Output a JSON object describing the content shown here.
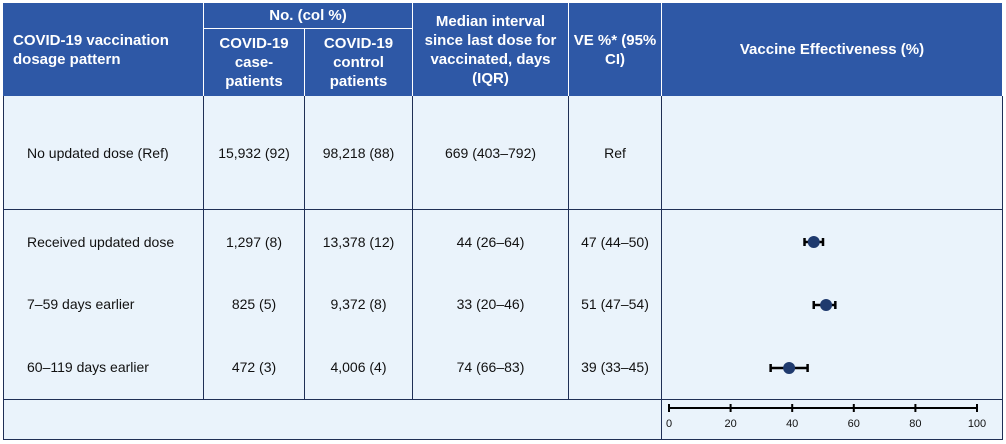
{
  "header": {
    "pattern": "COVID-19 vaccination dosage pattern",
    "no_col": "No. (col %)",
    "case_patients": "COVID-19 case-patients",
    "control_patients": "COVID-19 control patients",
    "median_interval": "Median interval since last dose for vaccinated, days (IQR)",
    "ve_ci": "VE %* (95% CI)",
    "ve_plot": "Vaccine Effectiveness (%)"
  },
  "rows": [
    {
      "pattern": "No updated dose (Ref)",
      "cases": "15,932 (92)",
      "controls": "98,218 (88)",
      "interval": "669 (403–792)",
      "ve": "Ref"
    },
    {
      "pattern": "Received updated dose",
      "cases": "1,297 (8)",
      "controls": "13,378 (12)",
      "interval": "44 (26–64)",
      "ve": "47 (44–50)"
    },
    {
      "pattern": "7–59 days earlier",
      "cases": "825 (5)",
      "controls": "9,372 (8)",
      "interval": "33 (20–46)",
      "ve": "51 (47–54)"
    },
    {
      "pattern": "60–119 days earlier",
      "cases": "472 (3)",
      "controls": "4,006 (4)",
      "interval": "74 (66–83)",
      "ve": "39 (33–45)"
    }
  ],
  "chart_data": {
    "type": "scatter",
    "title": "Vaccine Effectiveness (%)",
    "xlim": [
      0,
      100
    ],
    "x_ticks": [
      0,
      20,
      40,
      60,
      80,
      100
    ],
    "categories": [
      "Received updated dose",
      "7–59 days earlier",
      "60–119 days earlier"
    ],
    "values": [
      47,
      51,
      39
    ],
    "ci_lower": [
      44,
      47,
      33
    ],
    "ci_upper": [
      50,
      54,
      45
    ],
    "marker_color": "#1f3a6e",
    "grid": false
  },
  "colors": {
    "header_bg": "#2e58a6",
    "body_bg": "#eaf3fb",
    "rule": "#1f2f55"
  }
}
